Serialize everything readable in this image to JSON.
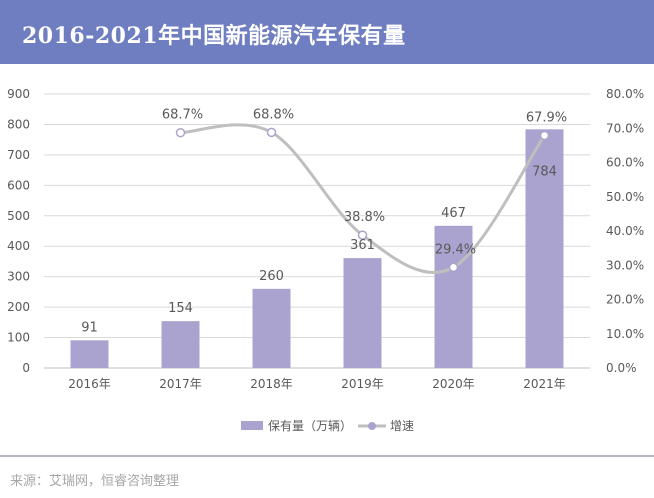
{
  "header": {
    "title": "2016-2021年中国新能源汽车保有量"
  },
  "source": "来源：艾瑞网，恒睿咨询整理",
  "colors": {
    "header_bg": "#6e7ec0",
    "bar": "#aba3cf",
    "line": "#bfbfbf",
    "marker": "#aba3cf",
    "grid": "#d9d9d9",
    "text": "#595959"
  },
  "chart_data": {
    "type": "bar",
    "categories": [
      "2016年",
      "2017年",
      "2018年",
      "2019年",
      "2020年",
      "2021年"
    ],
    "series": [
      {
        "name": "保有量（万辆）",
        "type": "bar",
        "axis": "left",
        "values": [
          91,
          154,
          260,
          361,
          467,
          784
        ],
        "labels": [
          "91",
          "154",
          "260",
          "361",
          "467",
          "784"
        ]
      },
      {
        "name": "增速",
        "type": "line",
        "axis": "right",
        "values": [
          null,
          68.7,
          68.8,
          38.8,
          29.4,
          67.9
        ],
        "labels": [
          "",
          "68.7%",
          "68.8%",
          "38.8%",
          "29.4%",
          "67.9%"
        ]
      }
    ],
    "y_left": {
      "min": 0,
      "max": 900,
      "ticks": [
        "0",
        "100",
        "200",
        "300",
        "400",
        "500",
        "600",
        "700",
        "800",
        "900"
      ]
    },
    "y_right": {
      "min": 0,
      "max": 80,
      "ticks": [
        "0.0%",
        "10.0%",
        "20.0%",
        "30.0%",
        "40.0%",
        "50.0%",
        "60.0%",
        "70.0%",
        "80.0%"
      ]
    },
    "grid": true,
    "legend": "bottom-center"
  }
}
